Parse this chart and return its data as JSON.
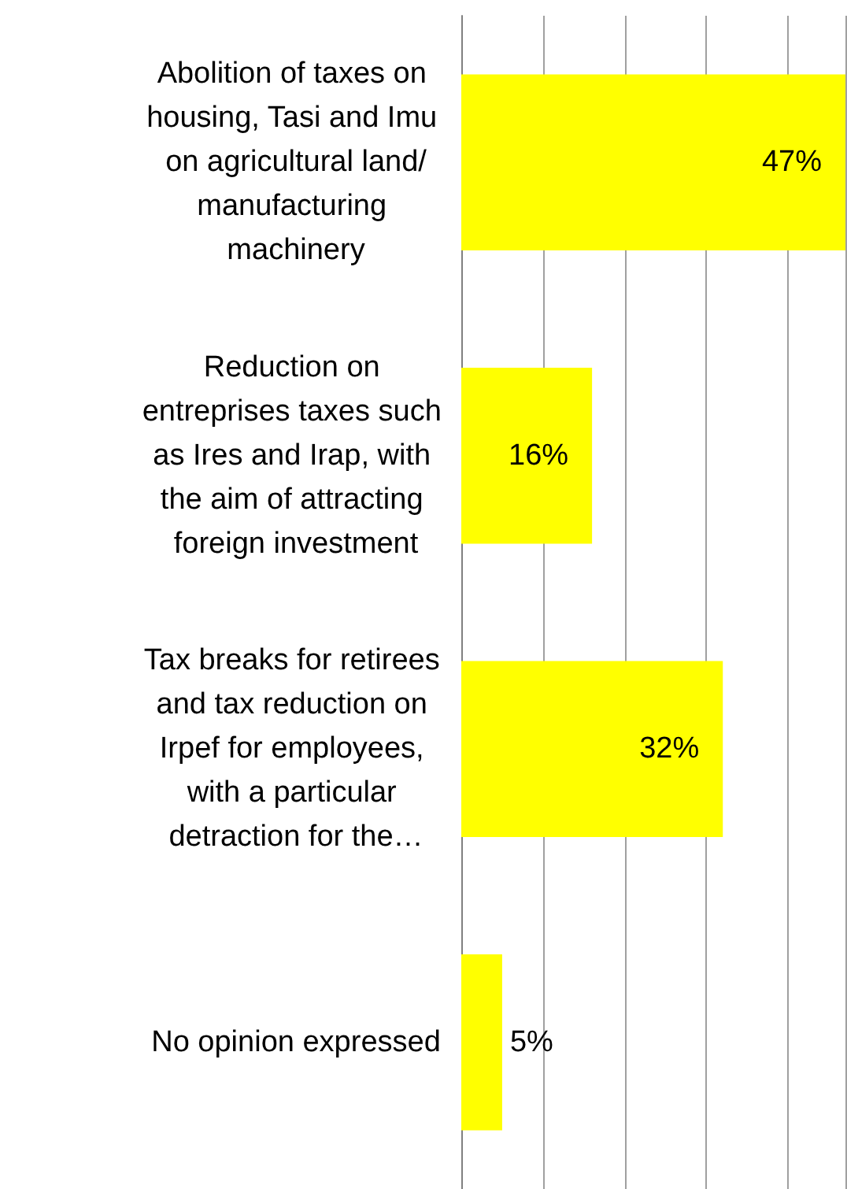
{
  "chart_data": {
    "type": "bar",
    "orientation": "horizontal",
    "categories": [
      "Abolition of taxes on housing, Tasi and Imu on agricultural land/manufacturing machinery",
      "Reduction on entreprises taxes such as Ires and Irap, with the aim of attracting foreign investment",
      "Tax breaks for retirees and tax reduction on Irpef for employees, with a particular detraction for the…",
      "No opinion expressed"
    ],
    "values": [
      47,
      16,
      32,
      5
    ],
    "value_labels": [
      "47%",
      "16%",
      "32%",
      "5%"
    ],
    "color": "#ffff00",
    "grid": "x",
    "tick_labels": "y"
  }
}
